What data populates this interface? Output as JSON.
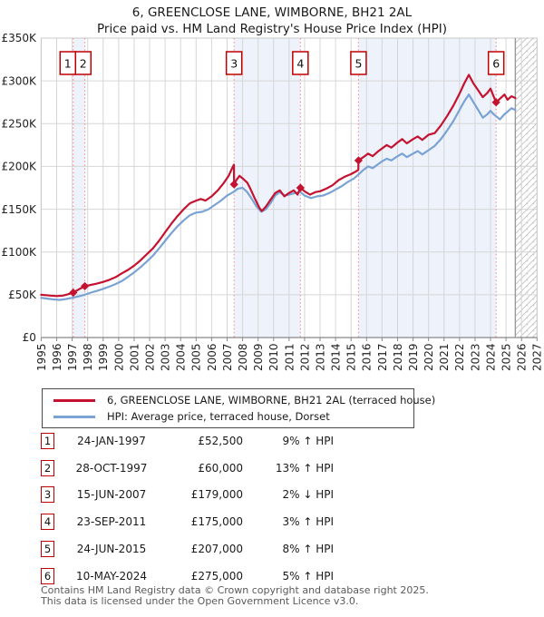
{
  "title": "6, GREENCLOSE LANE, WIMBORNE, BH21 2AL",
  "subtitle": "Price paid vs. HM Land Registry's House Price Index (HPI)",
  "colors": {
    "property_line": "#c41230",
    "hpi_line": "#7aa3d4",
    "sale_dashed": "#f48f8f",
    "ownership_band": "#edf2fb",
    "grid": "#d6d6d6",
    "plot_border": "#c8c8c8",
    "axis": "#888888",
    "marker_box_border": "#c00000",
    "hatch": "#c9c9c9",
    "tick_text": "#222222"
  },
  "legend": {
    "property": "6, GREENCLOSE LANE, WIMBORNE, BH21 2AL (terraced house)",
    "hpi": "HPI: Average price, terraced house, Dorset"
  },
  "sales": [
    {
      "number": "1",
      "date": "24-JAN-1997",
      "price": "£52,500",
      "hpi_text": "9% ↑ HPI",
      "year": 1997.07,
      "value_k": 52.5
    },
    {
      "number": "2",
      "date": "28-OCT-1997",
      "price": "£60,000",
      "hpi_text": "13% ↑ HPI",
      "year": 1997.82,
      "value_k": 60
    },
    {
      "number": "3",
      "date": "15-JUN-2007",
      "price": "£179,000",
      "hpi_text": "2% ↓ HPI",
      "year": 2007.45,
      "value_k": 179
    },
    {
      "number": "4",
      "date": "23-SEP-2011",
      "price": "£175,000",
      "hpi_text": "3% ↑ HPI",
      "year": 2011.73,
      "value_k": 175
    },
    {
      "number": "5",
      "date": "24-JUN-2015",
      "price": "£207,000",
      "hpi_text": "8% ↑ HPI",
      "year": 2015.48,
      "value_k": 207
    },
    {
      "number": "6",
      "date": "10-MAY-2024",
      "price": "£275,000",
      "hpi_text": "5% ↑ HPI",
      "year": 2024.36,
      "value_k": 275
    }
  ],
  "chart_data": {
    "type": "line",
    "unit": "£K",
    "x_range": [
      1995,
      2027
    ],
    "y_range_k": [
      0,
      350
    ],
    "x_ticks": [
      1995,
      1996,
      1997,
      1998,
      1999,
      2000,
      2001,
      2002,
      2003,
      2004,
      2005,
      2006,
      2007,
      2008,
      2009,
      2010,
      2011,
      2012,
      2013,
      2014,
      2015,
      2016,
      2017,
      2018,
      2019,
      2020,
      2021,
      2022,
      2023,
      2024,
      2025,
      2026,
      2027
    ],
    "y_tick_values": [
      0,
      50,
      100,
      150,
      200,
      250,
      300,
      350
    ],
    "y_tick_labels": [
      "£0",
      "£50K",
      "£100K",
      "£150K",
      "£200K",
      "£250K",
      "£300K",
      "£350K"
    ],
    "future_hatch_start": 2025.6,
    "ownership_bands": [
      [
        1997.07,
        1997.82
      ],
      [
        2007.45,
        2011.73
      ],
      [
        2015.48,
        2024.36
      ]
    ],
    "series": [
      {
        "name": "6, GREENCLOSE LANE, WIMBORNE, BH21 2AL (terraced house)",
        "color_key": "property_line",
        "points": [
          [
            1995.0,
            50
          ],
          [
            1995.3,
            49.5
          ],
          [
            1995.6,
            49
          ],
          [
            1996.0,
            48.5
          ],
          [
            1996.4,
            49
          ],
          [
            1996.7,
            50.5
          ],
          [
            1997.07,
            52.5
          ],
          [
            1997.4,
            56
          ],
          [
            1997.82,
            60
          ],
          [
            1998.2,
            61.5
          ],
          [
            1998.6,
            63
          ],
          [
            1999.0,
            65
          ],
          [
            1999.4,
            67.5
          ],
          [
            1999.8,
            70.5
          ],
          [
            2000.2,
            75
          ],
          [
            2000.6,
            79
          ],
          [
            2001.0,
            84
          ],
          [
            2001.4,
            90
          ],
          [
            2001.8,
            97
          ],
          [
            2002.2,
            104
          ],
          [
            2002.6,
            113
          ],
          [
            2003.0,
            123
          ],
          [
            2003.4,
            133
          ],
          [
            2003.8,
            142
          ],
          [
            2004.2,
            150
          ],
          [
            2004.6,
            157
          ],
          [
            2005.0,
            160
          ],
          [
            2005.3,
            162
          ],
          [
            2005.6,
            160
          ],
          [
            2006.0,
            165
          ],
          [
            2006.4,
            172
          ],
          [
            2006.8,
            181
          ],
          [
            2007.1,
            189
          ],
          [
            2007.3,
            197
          ],
          [
            2007.44,
            202
          ],
          [
            2007.45,
            179
          ],
          [
            2007.6,
            184
          ],
          [
            2007.8,
            189
          ],
          [
            2008.0,
            186
          ],
          [
            2008.3,
            181
          ],
          [
            2008.5,
            174
          ],
          [
            2008.8,
            162
          ],
          [
            2009.1,
            151
          ],
          [
            2009.25,
            148
          ],
          [
            2009.5,
            153
          ],
          [
            2009.8,
            161
          ],
          [
            2010.1,
            169
          ],
          [
            2010.4,
            172
          ],
          [
            2010.7,
            165
          ],
          [
            2011.0,
            169
          ],
          [
            2011.3,
            172
          ],
          [
            2011.55,
            167
          ],
          [
            2011.73,
            175
          ],
          [
            2012.0,
            171
          ],
          [
            2012.35,
            167
          ],
          [
            2012.7,
            170
          ],
          [
            2013.0,
            171
          ],
          [
            2013.4,
            174
          ],
          [
            2013.8,
            178
          ],
          [
            2014.2,
            184
          ],
          [
            2014.6,
            188
          ],
          [
            2015.0,
            191
          ],
          [
            2015.3,
            194
          ],
          [
            2015.47,
            196
          ],
          [
            2015.48,
            207
          ],
          [
            2015.8,
            211
          ],
          [
            2016.1,
            215
          ],
          [
            2016.4,
            212
          ],
          [
            2016.7,
            217
          ],
          [
            2017.0,
            221
          ],
          [
            2017.3,
            225
          ],
          [
            2017.6,
            222
          ],
          [
            2018.0,
            228
          ],
          [
            2018.3,
            232
          ],
          [
            2018.6,
            227
          ],
          [
            2019.0,
            232
          ],
          [
            2019.3,
            235
          ],
          [
            2019.6,
            231
          ],
          [
            2020.0,
            237
          ],
          [
            2020.4,
            239
          ],
          [
            2020.8,
            248
          ],
          [
            2021.2,
            259
          ],
          [
            2021.6,
            271
          ],
          [
            2022.0,
            285
          ],
          [
            2022.3,
            297
          ],
          [
            2022.6,
            307
          ],
          [
            2022.9,
            297
          ],
          [
            2023.2,
            289
          ],
          [
            2023.5,
            281
          ],
          [
            2023.8,
            286
          ],
          [
            2024.0,
            291
          ],
          [
            2024.2,
            282
          ],
          [
            2024.36,
            275
          ],
          [
            2024.6,
            279
          ],
          [
            2024.9,
            284
          ],
          [
            2025.1,
            278
          ],
          [
            2025.35,
            282
          ],
          [
            2025.6,
            280
          ]
        ]
      },
      {
        "name": "HPI: Average price, terraced house, Dorset",
        "color_key": "hpi_line",
        "points": [
          [
            1995.0,
            46.5
          ],
          [
            1995.4,
            45.5
          ],
          [
            1995.8,
            44.5
          ],
          [
            1996.2,
            44
          ],
          [
            1996.6,
            45
          ],
          [
            1997.0,
            46.5
          ],
          [
            1997.4,
            48
          ],
          [
            1997.8,
            50
          ],
          [
            1998.2,
            52.5
          ],
          [
            1998.6,
            54.5
          ],
          [
            1999.0,
            57
          ],
          [
            1999.4,
            59.5
          ],
          [
            1999.8,
            62.5
          ],
          [
            2000.2,
            66
          ],
          [
            2000.6,
            71
          ],
          [
            2001.0,
            76
          ],
          [
            2001.4,
            82
          ],
          [
            2001.8,
            88.5
          ],
          [
            2002.2,
            95.5
          ],
          [
            2002.6,
            104
          ],
          [
            2003.0,
            113
          ],
          [
            2003.4,
            122
          ],
          [
            2003.8,
            130
          ],
          [
            2004.2,
            137
          ],
          [
            2004.6,
            143
          ],
          [
            2005.0,
            146
          ],
          [
            2005.4,
            147
          ],
          [
            2005.8,
            150
          ],
          [
            2006.2,
            155
          ],
          [
            2006.6,
            160
          ],
          [
            2007.0,
            166
          ],
          [
            2007.4,
            170
          ],
          [
            2007.7,
            174
          ],
          [
            2008.0,
            175
          ],
          [
            2008.3,
            170
          ],
          [
            2008.6,
            162
          ],
          [
            2008.9,
            153
          ],
          [
            2009.2,
            147
          ],
          [
            2009.5,
            150
          ],
          [
            2009.8,
            157
          ],
          [
            2010.1,
            166
          ],
          [
            2010.4,
            170
          ],
          [
            2010.7,
            166
          ],
          [
            2011.0,
            167
          ],
          [
            2011.4,
            169
          ],
          [
            2011.73,
            170
          ],
          [
            2012.0,
            166
          ],
          [
            2012.4,
            163
          ],
          [
            2012.8,
            165
          ],
          [
            2013.2,
            166
          ],
          [
            2013.6,
            169
          ],
          [
            2014.0,
            173
          ],
          [
            2014.4,
            177
          ],
          [
            2014.8,
            182
          ],
          [
            2015.2,
            186
          ],
          [
            2015.5,
            191
          ],
          [
            2015.8,
            196
          ],
          [
            2016.1,
            200
          ],
          [
            2016.4,
            198
          ],
          [
            2016.7,
            202
          ],
          [
            2017.0,
            206
          ],
          [
            2017.3,
            209
          ],
          [
            2017.6,
            207
          ],
          [
            2018.0,
            212
          ],
          [
            2018.3,
            215
          ],
          [
            2018.6,
            211
          ],
          [
            2019.0,
            215
          ],
          [
            2019.3,
            218
          ],
          [
            2019.6,
            214
          ],
          [
            2020.0,
            219
          ],
          [
            2020.4,
            224
          ],
          [
            2020.8,
            232
          ],
          [
            2021.2,
            242
          ],
          [
            2021.6,
            253
          ],
          [
            2022.0,
            266
          ],
          [
            2022.3,
            276
          ],
          [
            2022.6,
            284
          ],
          [
            2022.9,
            275
          ],
          [
            2023.2,
            266
          ],
          [
            2023.5,
            257
          ],
          [
            2023.8,
            261
          ],
          [
            2024.0,
            265
          ],
          [
            2024.2,
            261
          ],
          [
            2024.4,
            258
          ],
          [
            2024.6,
            255
          ],
          [
            2024.9,
            261
          ],
          [
            2025.1,
            264
          ],
          [
            2025.35,
            268
          ],
          [
            2025.6,
            266
          ]
        ]
      }
    ]
  },
  "footer": {
    "line1": "Contains HM Land Registry data © Crown copyright and database right 2025.",
    "line2": "This data is licensed under the Open Government Licence v3.0."
  }
}
